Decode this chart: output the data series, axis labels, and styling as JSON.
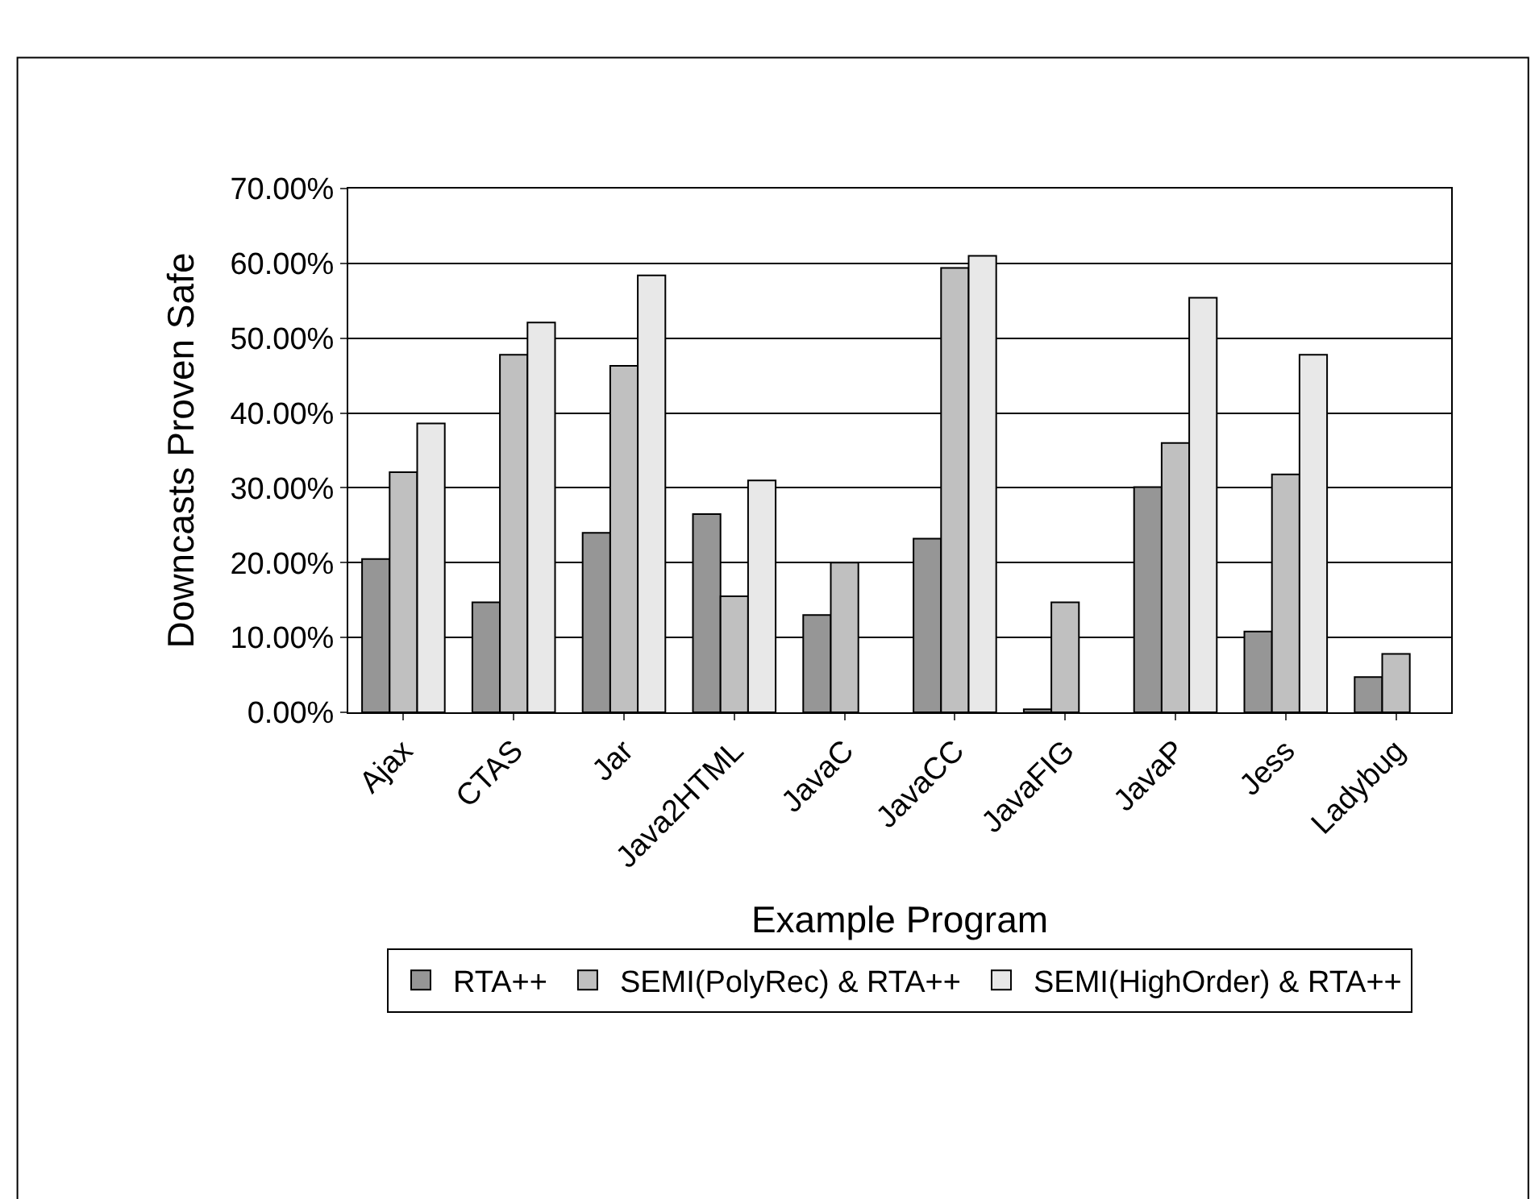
{
  "chart_data": {
    "type": "bar",
    "xlabel": "Example Program",
    "ylabel": "Downcasts Proven Safe",
    "categories": [
      "Ajax",
      "CTAS",
      "Jar",
      "Java2HTML",
      "JavaC",
      "JavaCC",
      "JavaFIG",
      "JavaP",
      "Jess",
      "Ladybug"
    ],
    "series": [
      {
        "name": "RTA++",
        "color": "#969696",
        "values": [
          20.5,
          14.7,
          24,
          26.5,
          13,
          23.2,
          0.4,
          30.1,
          10.8,
          4.7
        ]
      },
      {
        "name": "SEMI(PolyRec) & RTA++",
        "color": "#c0c0c0",
        "values": [
          32.1,
          47.8,
          46.3,
          15.5,
          20,
          59.4,
          14.7,
          36,
          31.8,
          7.8
        ]
      },
      {
        "name": "SEMI(HighOrder) & RTA++",
        "color": "#e8e8e8",
        "values": [
          38.6,
          52.1,
          58.4,
          31,
          null,
          61,
          null,
          55.4,
          47.8,
          null
        ]
      }
    ],
    "ylim": [
      0,
      70
    ],
    "yticks": [
      {
        "value": 0,
        "label": "0.00%"
      },
      {
        "value": 10,
        "label": "10.00%"
      },
      {
        "value": 20,
        "label": "20.00%"
      },
      {
        "value": 30,
        "label": "30.00%"
      },
      {
        "value": 40,
        "label": "40.00%"
      },
      {
        "value": 50,
        "label": "50.00%"
      },
      {
        "value": 60,
        "label": "60.00%"
      },
      {
        "value": 70,
        "label": "70.00%"
      }
    ],
    "grid": "y",
    "legend": "bottom"
  }
}
